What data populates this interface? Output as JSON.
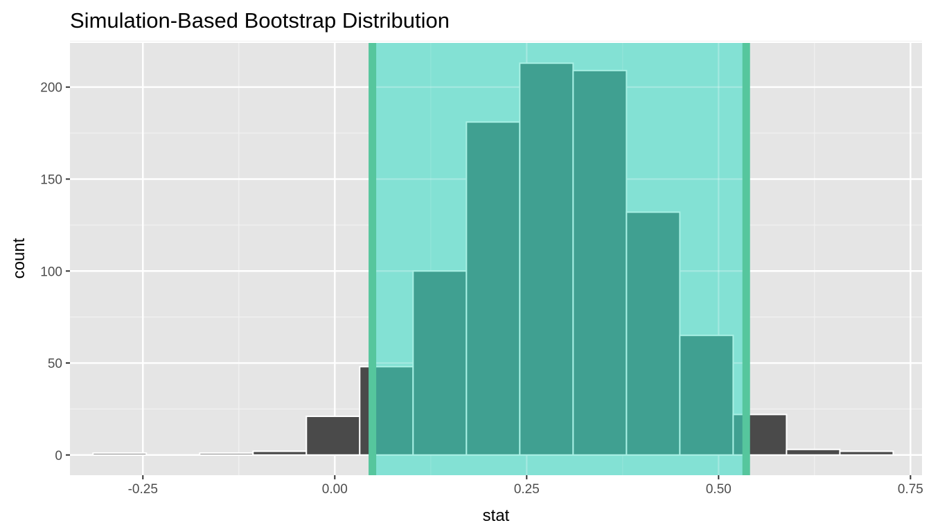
{
  "chart_data": {
    "type": "bar",
    "title": "Simulation-Based Bootstrap Distribution",
    "xlabel": "stat",
    "ylabel": "count",
    "xlim": [
      -0.345,
      0.765
    ],
    "ylim": [
      -11,
      224
    ],
    "x_ticks": [
      {
        "value": -0.25,
        "label": "-0.25"
      },
      {
        "value": 0.0,
        "label": "0.00"
      },
      {
        "value": 0.25,
        "label": "0.25"
      },
      {
        "value": 0.5,
        "label": "0.50"
      },
      {
        "value": 0.75,
        "label": "0.75"
      }
    ],
    "y_ticks": [
      {
        "value": 0,
        "label": "0"
      },
      {
        "value": 50,
        "label": "50"
      },
      {
        "value": 100,
        "label": "100"
      },
      {
        "value": 150,
        "label": "150"
      },
      {
        "value": 200,
        "label": "200"
      }
    ],
    "bins": [
      {
        "x0": -0.315,
        "x1": -0.2455,
        "count": 1
      },
      {
        "x0": -0.2455,
        "x1": -0.176,
        "count": 0
      },
      {
        "x0": -0.176,
        "x1": -0.1065,
        "count": 1
      },
      {
        "x0": -0.1065,
        "x1": -0.037,
        "count": 2
      },
      {
        "x0": -0.037,
        "x1": 0.0325,
        "count": 21
      },
      {
        "x0": 0.0325,
        "x1": 0.102,
        "count": 48
      },
      {
        "x0": 0.102,
        "x1": 0.1715,
        "count": 100
      },
      {
        "x0": 0.1715,
        "x1": 0.241,
        "count": 181
      },
      {
        "x0": 0.241,
        "x1": 0.3105,
        "count": 213
      },
      {
        "x0": 0.3105,
        "x1": 0.38,
        "count": 209
      },
      {
        "x0": 0.38,
        "x1": 0.4495,
        "count": 132
      },
      {
        "x0": 0.4495,
        "x1": 0.519,
        "count": 65
      },
      {
        "x0": 0.519,
        "x1": 0.5885,
        "count": 22
      },
      {
        "x0": 0.5885,
        "x1": 0.658,
        "count": 3
      },
      {
        "x0": 0.658,
        "x1": 0.7275,
        "count": 2
      }
    ],
    "confidence_interval": {
      "lower": 0.049,
      "upper": 0.536
    },
    "grid": true,
    "colors": {
      "panel": "#e5e5e5",
      "bar": "#4a4a4a",
      "bar_outline": "#ffffff",
      "ci_fill": "#83e1d4",
      "ci_bar": "#40a091",
      "ci_bar_outline": "#a8f0e4",
      "ci_line": "#56c69d"
    }
  }
}
